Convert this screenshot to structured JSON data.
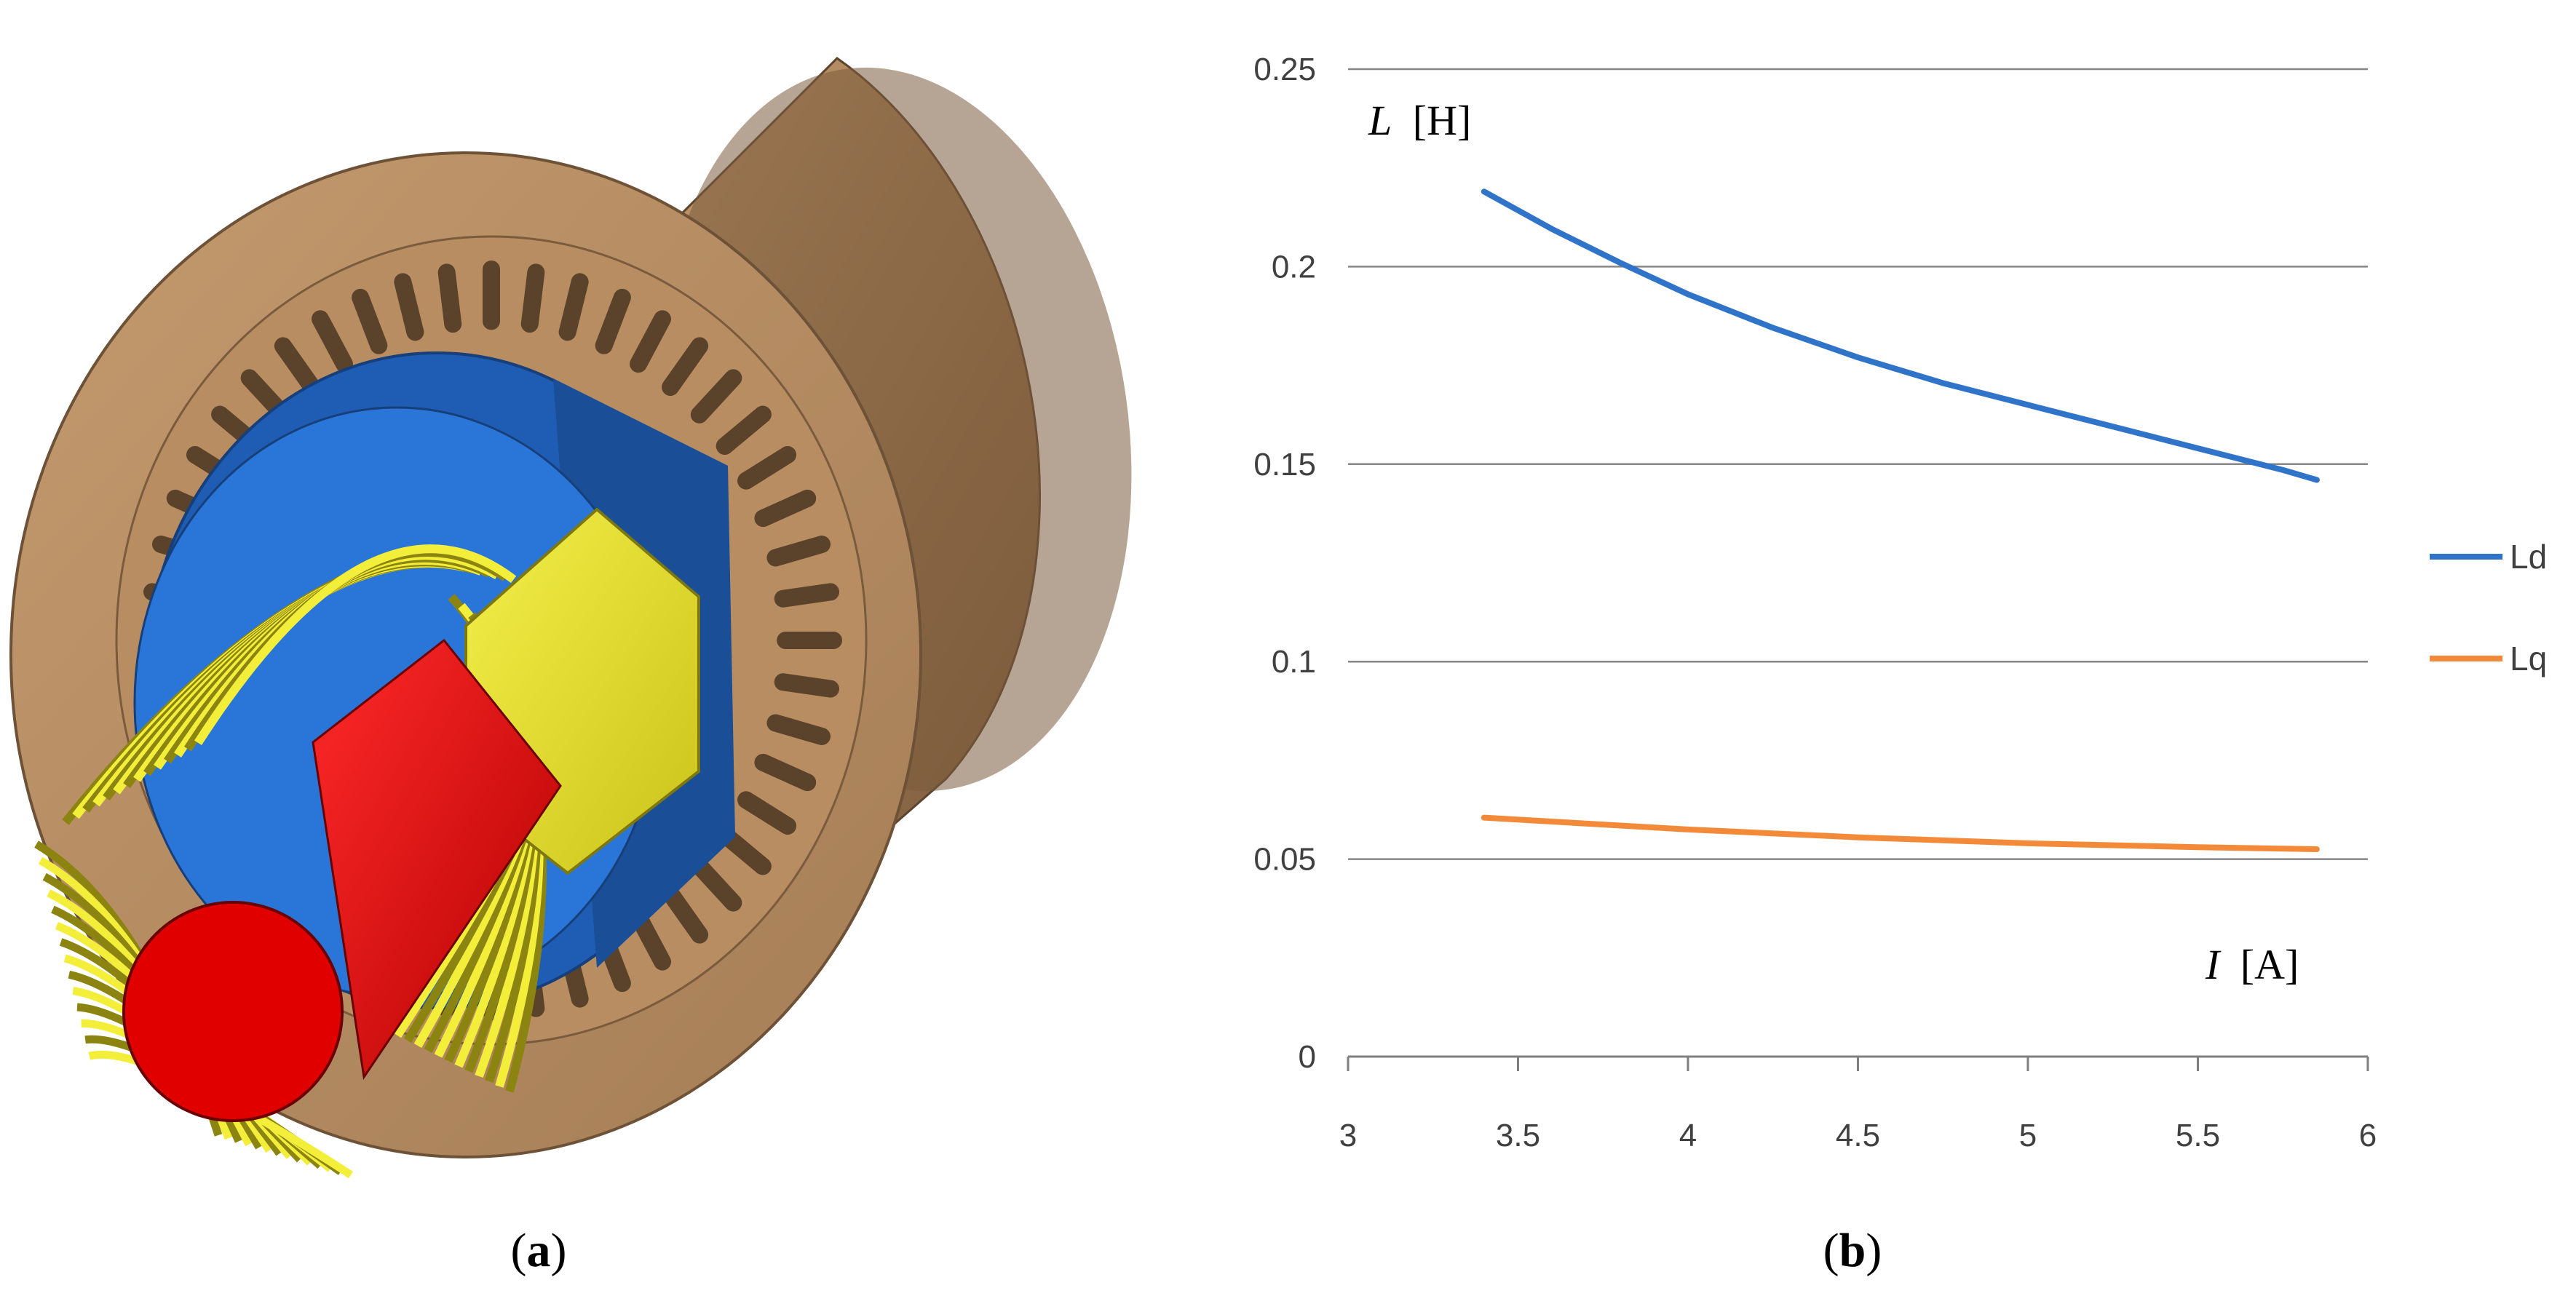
{
  "panel_a": {
    "caption_letter": "a"
  },
  "panel_b": {
    "caption_letter": "b"
  },
  "chart_data": {
    "type": "line",
    "title": "",
    "xlabel": "I [A]",
    "xlabel_symbol": "I",
    "xlabel_unit": "[A]",
    "ylabel": "L [H]",
    "ylabel_symbol": "L",
    "ylabel_unit": "[H]",
    "xlim": [
      3,
      6
    ],
    "ylim": [
      0,
      0.25
    ],
    "x_ticks": [
      3,
      3.5,
      4,
      4.5,
      5,
      5.5,
      6
    ],
    "x_tick_labels": [
      "3",
      "3.5",
      "4",
      "4.5",
      "5",
      "5.5",
      "6"
    ],
    "y_ticks": [
      0,
      0.05,
      0.1,
      0.15,
      0.2,
      0.25
    ],
    "y_tick_labels": [
      "0",
      "0.05",
      "0.1",
      "0.15",
      "0.2",
      "0.25"
    ],
    "grid": "horizontal",
    "legend_position": "right",
    "series": [
      {
        "name": "Ld",
        "color": "#2f74c8",
        "x": [
          3.4,
          3.6,
          3.8,
          4.0,
          4.25,
          4.5,
          4.75,
          5.0,
          5.25,
          5.5,
          5.75,
          5.85
        ],
        "y": [
          0.219,
          0.2095,
          0.201,
          0.193,
          0.1845,
          0.177,
          0.1705,
          0.165,
          0.1595,
          0.154,
          0.1485,
          0.146
        ]
      },
      {
        "name": "Lq",
        "color": "#f28a3a",
        "x": [
          3.4,
          4.0,
          4.5,
          5.0,
          5.5,
          5.85
        ],
        "y": [
          0.0605,
          0.0575,
          0.0555,
          0.054,
          0.053,
          0.0525
        ]
      }
    ]
  }
}
